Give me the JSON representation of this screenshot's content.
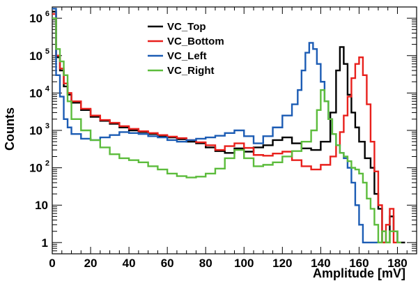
{
  "chart_data": {
    "type": "line",
    "xlabel": "Amplitude [mV]",
    "ylabel": "Counts",
    "xlim": [
      0,
      190
    ],
    "ylim": [
      0.5,
      2000000
    ],
    "yscale": "log",
    "xticks": [
      0,
      20,
      40,
      60,
      80,
      100,
      120,
      140,
      160,
      180
    ],
    "yticks": [
      {
        "value": 1,
        "label": "1"
      },
      {
        "value": 10,
        "label": "10"
      },
      {
        "value": 100,
        "label": "10",
        "exp": "2"
      },
      {
        "value": 1000,
        "label": "10",
        "exp": "3"
      },
      {
        "value": 10000,
        "label": "10",
        "exp": "4"
      },
      {
        "value": 100000,
        "label": "10",
        "exp": "5"
      },
      {
        "value": 1000000,
        "label": "10",
        "exp": "6"
      }
    ],
    "legend_position": "top-center",
    "histogram": true,
    "series": [
      {
        "name": "VC_Top",
        "color": "#000000",
        "points": [
          [
            0,
            1500000
          ],
          [
            2,
            90000
          ],
          [
            4,
            40000
          ],
          [
            6,
            15000
          ],
          [
            8,
            9000
          ],
          [
            10,
            5500
          ],
          [
            15,
            3500
          ],
          [
            20,
            2300
          ],
          [
            25,
            1800
          ],
          [
            30,
            1500
          ],
          [
            35,
            1200
          ],
          [
            40,
            1000
          ],
          [
            45,
            900
          ],
          [
            50,
            800
          ],
          [
            55,
            700
          ],
          [
            60,
            650
          ],
          [
            65,
            580
          ],
          [
            70,
            500
          ],
          [
            75,
            450
          ],
          [
            80,
            350
          ],
          [
            85,
            280
          ],
          [
            90,
            250
          ],
          [
            95,
            330
          ],
          [
            100,
            270
          ],
          [
            105,
            350
          ],
          [
            110,
            400
          ],
          [
            115,
            550
          ],
          [
            120,
            650
          ],
          [
            125,
            450
          ],
          [
            130,
            330
          ],
          [
            135,
            300
          ],
          [
            140,
            500
          ],
          [
            145,
            3000
          ],
          [
            148,
            40000
          ],
          [
            150,
            170000
          ],
          [
            152,
            60000
          ],
          [
            154,
            9000
          ],
          [
            156,
            3000
          ],
          [
            158,
            1200
          ],
          [
            160,
            500
          ],
          [
            163,
            180
          ],
          [
            166,
            100
          ],
          [
            168,
            20
          ],
          [
            170,
            8
          ],
          [
            172,
            1
          ],
          [
            174,
            1
          ],
          [
            176,
            5
          ],
          [
            178,
            2
          ],
          [
            180,
            1
          ],
          [
            182,
            1
          ]
        ]
      },
      {
        "name": "VC_Bottom",
        "color": "#e8201c",
        "points": [
          [
            0,
            1300000
          ],
          [
            2,
            100000
          ],
          [
            4,
            45000
          ],
          [
            6,
            18000
          ],
          [
            8,
            10000
          ],
          [
            10,
            6000
          ],
          [
            15,
            3800
          ],
          [
            20,
            2500
          ],
          [
            25,
            1900
          ],
          [
            30,
            1600
          ],
          [
            35,
            1300
          ],
          [
            40,
            1100
          ],
          [
            45,
            950
          ],
          [
            50,
            850
          ],
          [
            55,
            750
          ],
          [
            60,
            680
          ],
          [
            65,
            620
          ],
          [
            70,
            550
          ],
          [
            75,
            480
          ],
          [
            80,
            400
          ],
          [
            85,
            300
          ],
          [
            90,
            380
          ],
          [
            95,
            450
          ],
          [
            100,
            340
          ],
          [
            105,
            220
          ],
          [
            110,
            210
          ],
          [
            115,
            240
          ],
          [
            120,
            270
          ],
          [
            125,
            160
          ],
          [
            130,
            110
          ],
          [
            135,
            90
          ],
          [
            140,
            120
          ],
          [
            145,
            200
          ],
          [
            148,
            400
          ],
          [
            150,
            900
          ],
          [
            152,
            2500
          ],
          [
            154,
            8000
          ],
          [
            156,
            25000
          ],
          [
            158,
            60000
          ],
          [
            160,
            90000
          ],
          [
            162,
            30000
          ],
          [
            164,
            5000
          ],
          [
            166,
            500
          ],
          [
            168,
            80
          ],
          [
            170,
            10
          ],
          [
            172,
            1
          ],
          [
            174,
            3
          ],
          [
            176,
            8
          ],
          [
            178,
            1
          ],
          [
            180,
            1
          ]
        ]
      },
      {
        "name": "VC_Left",
        "color": "#1c5cb4",
        "points": [
          [
            0,
            1800000
          ],
          [
            2,
            30000
          ],
          [
            4,
            8000
          ],
          [
            6,
            2000
          ],
          [
            8,
            1200
          ],
          [
            10,
            800
          ],
          [
            15,
            600
          ],
          [
            20,
            550
          ],
          [
            25,
            650
          ],
          [
            30,
            750
          ],
          [
            35,
            900
          ],
          [
            40,
            850
          ],
          [
            45,
            800
          ],
          [
            50,
            700
          ],
          [
            55,
            650
          ],
          [
            60,
            550
          ],
          [
            65,
            500
          ],
          [
            70,
            550
          ],
          [
            75,
            600
          ],
          [
            80,
            650
          ],
          [
            85,
            720
          ],
          [
            90,
            850
          ],
          [
            95,
            1000
          ],
          [
            100,
            700
          ],
          [
            105,
            450
          ],
          [
            110,
            700
          ],
          [
            115,
            1200
          ],
          [
            120,
            2500
          ],
          [
            125,
            5000
          ],
          [
            128,
            12000
          ],
          [
            130,
            40000
          ],
          [
            132,
            120000
          ],
          [
            134,
            220000
          ],
          [
            136,
            150000
          ],
          [
            138,
            60000
          ],
          [
            140,
            20000
          ],
          [
            142,
            6000
          ],
          [
            144,
            2000
          ],
          [
            146,
            800
          ],
          [
            148,
            400
          ],
          [
            150,
            250
          ],
          [
            152,
            180
          ],
          [
            154,
            100
          ],
          [
            156,
            40
          ],
          [
            158,
            10
          ],
          [
            160,
            3
          ],
          [
            162,
            1
          ],
          [
            164,
            1
          ],
          [
            170,
            1
          ]
        ]
      },
      {
        "name": "VC_Right",
        "color": "#5cbc3c",
        "points": [
          [
            0,
            1000000
          ],
          [
            2,
            150000
          ],
          [
            4,
            70000
          ],
          [
            6,
            30000
          ],
          [
            8,
            6000
          ],
          [
            10,
            2000
          ],
          [
            15,
            1000
          ],
          [
            20,
            550
          ],
          [
            25,
            350
          ],
          [
            30,
            230
          ],
          [
            35,
            180
          ],
          [
            40,
            160
          ],
          [
            45,
            140
          ],
          [
            50,
            110
          ],
          [
            55,
            90
          ],
          [
            60,
            70
          ],
          [
            65,
            60
          ],
          [
            70,
            55
          ],
          [
            75,
            58
          ],
          [
            80,
            70
          ],
          [
            85,
            95
          ],
          [
            90,
            180
          ],
          [
            95,
            300
          ],
          [
            100,
            180
          ],
          [
            105,
            110
          ],
          [
            110,
            120
          ],
          [
            115,
            140
          ],
          [
            120,
            200
          ],
          [
            125,
            280
          ],
          [
            130,
            500
          ],
          [
            135,
            1000
          ],
          [
            138,
            3500
          ],
          [
            140,
            12000
          ],
          [
            142,
            6000
          ],
          [
            144,
            2000
          ],
          [
            146,
            800
          ],
          [
            148,
            400
          ],
          [
            150,
            250
          ],
          [
            152,
            200
          ],
          [
            154,
            150
          ],
          [
            156,
            100
          ],
          [
            158,
            90
          ],
          [
            160,
            70
          ],
          [
            162,
            40
          ],
          [
            164,
            15
          ],
          [
            166,
            8
          ],
          [
            168,
            3
          ],
          [
            170,
            1
          ],
          [
            172,
            2
          ],
          [
            174,
            1
          ],
          [
            176,
            2
          ],
          [
            180,
            1
          ]
        ]
      }
    ]
  }
}
